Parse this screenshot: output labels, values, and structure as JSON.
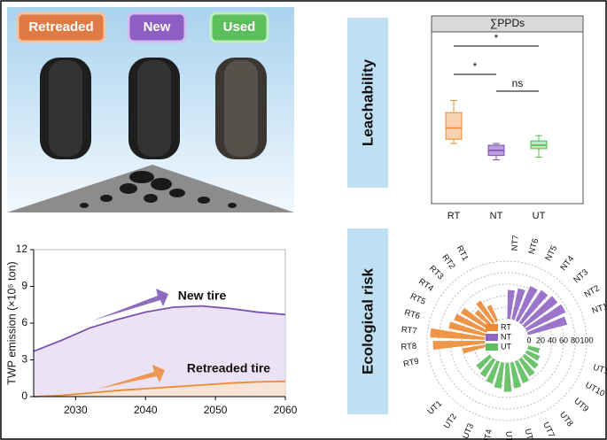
{
  "illustration": {
    "labels": [
      "Retreaded",
      "New",
      "Used"
    ]
  },
  "panel_labels": [
    "Leachability",
    "Ecological risk"
  ],
  "chart_data": [
    {
      "type": "area",
      "x": [
        2024,
        2028,
        2032,
        2036,
        2040,
        2044,
        2048,
        2052,
        2056,
        2060
      ],
      "xlim": [
        2024,
        2060
      ],
      "xticks": [
        2030,
        2040,
        2050,
        2060
      ],
      "ylim": [
        0,
        12
      ],
      "yticks": [
        0,
        3,
        6,
        9,
        12
      ],
      "y_label": "TWP emission (×10⁵ ton)",
      "series": [
        {
          "name": "New tire",
          "color": "#7a52b3",
          "fill": "#e6dcf3",
          "values": [
            3.7,
            4.6,
            5.6,
            6.3,
            6.9,
            7.3,
            7.4,
            7.2,
            6.9,
            6.7
          ]
        },
        {
          "name": "Retreaded tire",
          "color": "#ee8a33",
          "fill": "#fbe3cc",
          "values": [
            0,
            0.1,
            0.3,
            0.5,
            0.65,
            0.8,
            0.95,
            1.1,
            1.2,
            1.25
          ]
        }
      ]
    },
    {
      "type": "box",
      "title": "∑PPDs",
      "categories": [
        "RT",
        "NT",
        "UT"
      ],
      "colors": [
        "#ee8a33",
        "#7a52b3",
        "#4cb84c"
      ],
      "fills": [
        "#f8d2b0",
        "#b9a0dc",
        "#bfe6bf"
      ],
      "ylim": [
        0,
        100
      ],
      "min": [
        35,
        25.5,
        27
      ],
      "q1": [
        37.5,
        28,
        32
      ],
      "median": [
        44,
        31,
        34
      ],
      "q3": [
        53,
        34,
        36.5
      ],
      "max": [
        60,
        35,
        39.6
      ],
      "comparisons": [
        {
          "pair": [
            "RT",
            "UT"
          ],
          "label": "*"
        },
        {
          "pair": [
            "RT",
            "NT"
          ],
          "label": "*"
        },
        {
          "pair": [
            "NT",
            "UT"
          ],
          "label": "ns"
        }
      ]
    },
    {
      "type": "radial_bar",
      "rlim": [
        0,
        100
      ],
      "rticks": [
        0,
        20,
        40,
        60,
        80,
        100
      ],
      "series": [
        {
          "name": "RT",
          "color": "#ee8a33",
          "categories": [
            "RT1",
            "RT2",
            "RT3",
            "RT4",
            "RT5",
            "RT6",
            "RT7",
            "RT8",
            "RT9"
          ],
          "values": [
            30,
            45,
            35,
            55,
            60,
            65,
            95,
            90,
            40
          ]
        },
        {
          "name": "NT",
          "color": "#8f66c4",
          "categories": [
            "NT1",
            "NT2",
            "NT3",
            "NT4",
            "NT5",
            "NT6",
            "NT7"
          ],
          "values": [
            70,
            75,
            72,
            68,
            65,
            55,
            50
          ]
        },
        {
          "name": "UT",
          "color": "#5cbf5c",
          "categories": [
            "UT1",
            "UT2",
            "UT3",
            "UT4",
            "UT5",
            "UT6",
            "UT7",
            "UT8",
            "UT9",
            "UT10",
            "UT11"
          ],
          "values": [
            30,
            35,
            40,
            45,
            50,
            45,
            40,
            35,
            30,
            25,
            20
          ]
        }
      ]
    }
  ]
}
